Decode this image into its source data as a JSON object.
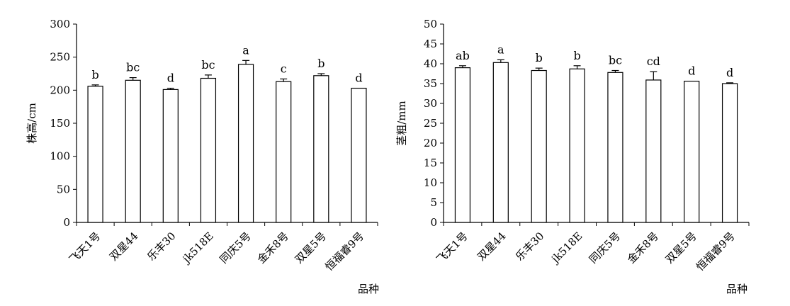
{
  "chart_data": [
    {
      "type": "bar",
      "title": "",
      "xlabel": "品种",
      "ylabel": "株高/cm",
      "ylim": [
        0,
        300
      ],
      "yticks": [
        0,
        50,
        100,
        150,
        200,
        250,
        300
      ],
      "grid": false,
      "categories": [
        "飞天1号",
        "双星44",
        "乐丰30",
        "jk518E",
        "同庆5号",
        "金禾8号",
        "双星5号",
        "恒福睿9号"
      ],
      "values": [
        206,
        215,
        201,
        218,
        239,
        213,
        222,
        203
      ],
      "errors": [
        2,
        4,
        2,
        5,
        6,
        4,
        3,
        0
      ],
      "significance": [
        "b",
        "bc",
        "d",
        "bc",
        "a",
        "c",
        "b",
        "d"
      ]
    },
    {
      "type": "bar",
      "title": "",
      "xlabel": "品种",
      "ylabel": "茎粗/mm",
      "ylim": [
        0,
        50
      ],
      "yticks": [
        0,
        5,
        10,
        15,
        20,
        25,
        30,
        35,
        40,
        45,
        50
      ],
      "grid": false,
      "categories": [
        "飞天1号",
        "双星44",
        "乐丰30",
        "jk518E",
        "同庆5号",
        "金禾8号",
        "双星5号",
        "恒福睿9号"
      ],
      "values": [
        39,
        40.3,
        38.3,
        38.7,
        37.8,
        35.9,
        35.6,
        35
      ],
      "errors": [
        0.5,
        0.7,
        0.6,
        0.8,
        0.5,
        2.1,
        0,
        0.2
      ],
      "significance": [
        "ab",
        "a",
        "b",
        "b",
        "bc",
        "cd",
        "d",
        "d"
      ]
    }
  ]
}
